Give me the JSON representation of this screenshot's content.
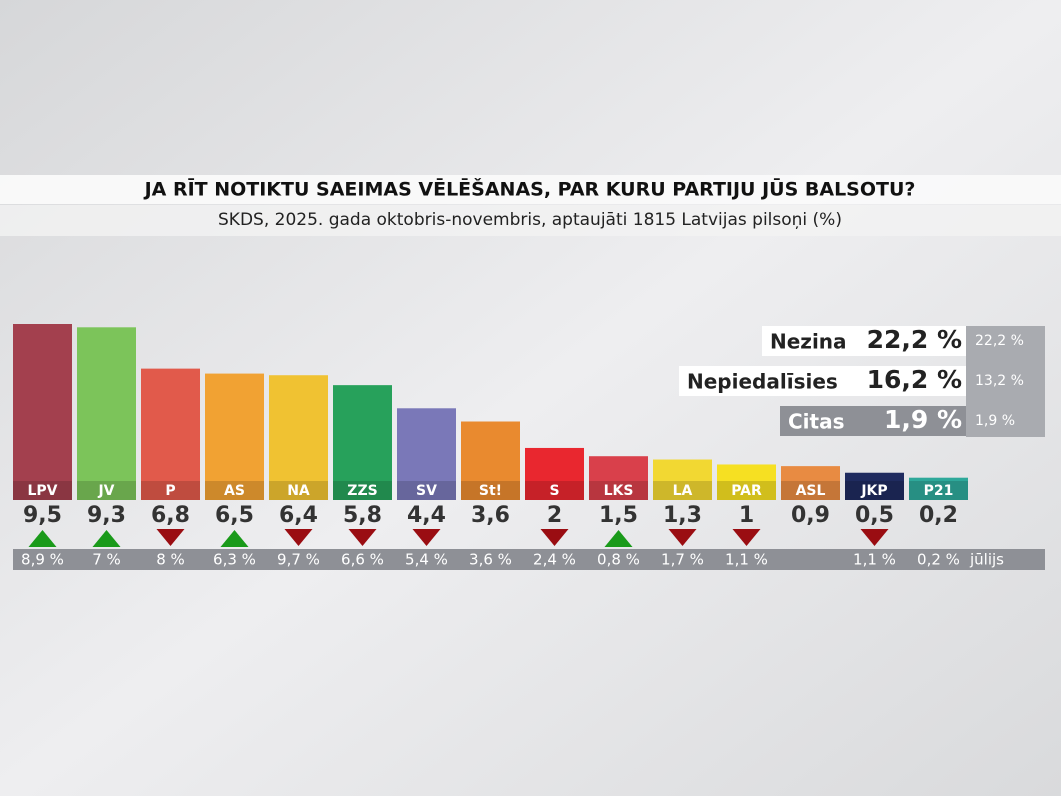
{
  "chart_data": {
    "type": "bar",
    "title": "JA RĪT NOTIKTU SAEIMAS VĒLĒŠANAS, PAR KURU PARTIJU JŪS BALSOTU?",
    "subtitle": "SKDS, 2025. gada oktobris-novembris, aptaujāti 1815 Latvijas pilsoņi (%)",
    "categories": [
      "LPV",
      "JV",
      "P",
      "AS",
      "NA",
      "ZZS",
      "SV",
      "St!",
      "S",
      "LKS",
      "LA",
      "PAR",
      "ASL",
      "JKP",
      "P21"
    ],
    "values": [
      9.5,
      9.3,
      6.8,
      6.5,
      6.4,
      5.8,
      4.4,
      3.6,
      2,
      1.5,
      1.3,
      1,
      0.9,
      0.5,
      0.2
    ],
    "value_labels": [
      "9,5",
      "9,3",
      "6,8",
      "6,5",
      "6,4",
      "5,8",
      "4,4",
      "3,6",
      "2",
      "1,5",
      "1,3",
      "1",
      "0,9",
      "0,5",
      "0,2"
    ],
    "colors": [
      "#a3404e",
      "#7cc45a",
      "#e15a4b",
      "#f1a233",
      "#f0c232",
      "#27a15b",
      "#7a78b8",
      "#e98a2f",
      "#e9272f",
      "#d9404b",
      "#f2d832",
      "#f6e022",
      "#e88b42",
      "#1f2b5f",
      "#2ea89a"
    ],
    "previous": {
      "label": "jūlijs",
      "values": [
        8.9,
        7,
        8,
        6.3,
        9.7,
        6.6,
        5.4,
        3.6,
        2.4,
        0.8,
        1.7,
        1.1,
        null,
        1.1,
        0.2
      ],
      "value_labels": [
        "8,9 %",
        "7 %",
        "8 %",
        "6,3 %",
        "9,7 %",
        "6,6 %",
        "5,4 %",
        "3,6 %",
        "2,4 %",
        "0,8 %",
        "1,7 %",
        "1,1 %",
        null,
        "1,1 %",
        "0,2 %"
      ]
    },
    "extras": [
      {
        "name": "Nezina",
        "value": 22.2,
        "value_label": "22,2 %",
        "previous": 22.2,
        "previous_label": "22,2 %"
      },
      {
        "name": "Nepiedalīsies",
        "value": 16.2,
        "value_label": "16,2 %",
        "previous": 13.2,
        "previous_label": "13,2 %"
      },
      {
        "name": "Citas",
        "value": 1.9,
        "value_label": "1,9 %",
        "previous": 1.9,
        "previous_label": "1,9 %"
      }
    ]
  }
}
